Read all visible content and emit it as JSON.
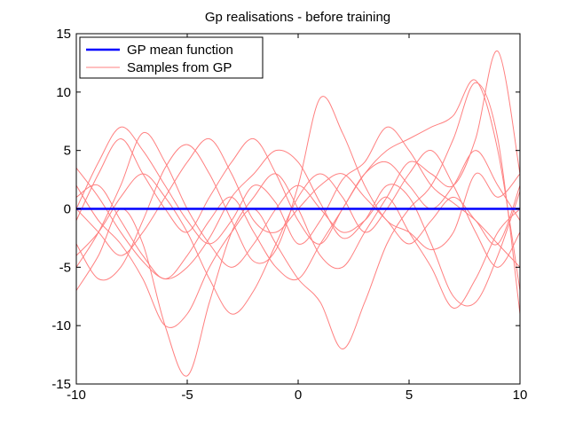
{
  "chart_data": {
    "type": "line",
    "title": "Gp realisations - before training",
    "xlabel": "",
    "ylabel": "",
    "xlim": [
      -10,
      10
    ],
    "ylim": [
      -15,
      15
    ],
    "xticks": [
      -10,
      -5,
      0,
      5,
      10
    ],
    "yticks": [
      -15,
      -10,
      -5,
      0,
      5,
      10,
      15
    ],
    "grid": false,
    "legend_position": "top-left",
    "legend": [
      {
        "label": "GP mean function",
        "color": "#0000ff"
      },
      {
        "label": "Samples from GP",
        "color": "#ff8080"
      }
    ],
    "series": [
      {
        "name": "GP mean function",
        "color": "#0000ff",
        "x": [
          -10,
          -8,
          -6,
          -4,
          -2,
          0,
          2,
          4,
          6,
          8,
          10
        ],
        "y": [
          0,
          0,
          0,
          0,
          0,
          0,
          0,
          0,
          0,
          0,
          0
        ]
      },
      {
        "color": "#ff8080",
        "x": [
          -10,
          -9,
          -8,
          -7,
          -6,
          -5,
          -4,
          -3,
          -2,
          -1,
          0,
          1,
          2,
          3,
          4,
          5,
          6,
          7,
          8,
          9,
          10
        ],
        "y": [
          3.5,
          1,
          -2,
          -4.5,
          -6,
          -5,
          -2.5,
          1,
          3,
          5,
          4,
          0.5,
          -2.5,
          -1,
          2,
          1,
          -3,
          -7.5,
          -8,
          -4,
          1.5
        ]
      },
      {
        "color": "#ff8080",
        "x": [
          -10,
          -9,
          -8,
          -7,
          -6,
          -5,
          -4,
          -3,
          -2,
          -1,
          0,
          1,
          2,
          3,
          4,
          5,
          6,
          7,
          8,
          9,
          10
        ],
        "y": [
          -3,
          -6,
          -5,
          -1,
          3.5,
          5.5,
          3,
          -1,
          -4.5,
          -3.5,
          2,
          9.5,
          6.5,
          2,
          -1,
          -2,
          -3.5,
          -2,
          3,
          1,
          3
        ]
      },
      {
        "color": "#ff8080",
        "x": [
          -10,
          -9,
          -8,
          -7,
          -6,
          -5,
          -4,
          -3,
          -2,
          -1,
          0,
          1,
          2,
          3,
          4,
          5,
          6,
          7,
          8,
          9,
          10
        ],
        "y": [
          0,
          4,
          7,
          5,
          2,
          -1,
          -3,
          -1,
          2,
          0.5,
          -3,
          -1,
          2.5,
          4,
          7,
          5,
          2,
          0.5,
          -1,
          -3,
          -5
        ]
      },
      {
        "color": "#ff8080",
        "x": [
          -10,
          -9,
          -8,
          -7,
          -6,
          -5,
          -4,
          -3,
          -2,
          -1,
          0,
          1,
          2,
          3,
          4,
          5,
          6,
          7,
          8,
          9,
          10
        ],
        "y": [
          1,
          2,
          -1,
          -4,
          -6,
          -4,
          -1,
          1,
          -2,
          -5,
          -6,
          -3,
          0,
          3,
          4,
          2,
          0,
          2,
          5,
          2,
          -1
        ]
      },
      {
        "color": "#ff8080",
        "x": [
          -10,
          -9,
          -8,
          -7,
          -6,
          -5,
          -4,
          -3,
          -2,
          -1,
          0,
          1,
          2,
          3,
          4,
          5,
          6,
          7,
          8,
          9,
          10
        ],
        "y": [
          -5,
          -2,
          2,
          6.5,
          4,
          0,
          -3,
          -5,
          -3,
          0,
          2,
          0,
          -2,
          -1,
          1,
          -2,
          -5,
          -8.5,
          -6,
          -2,
          0
        ]
      },
      {
        "color": "#ff8080",
        "x": [
          -10,
          -9,
          -8,
          -7,
          -6,
          -5,
          -4,
          -3,
          -2,
          -1,
          0,
          1,
          2,
          3,
          4,
          5,
          6,
          7,
          8,
          9,
          10
        ],
        "y": [
          -7,
          -4,
          0,
          -3,
          -10,
          -14.3,
          -8,
          -2,
          1,
          3,
          0,
          -4,
          -5,
          -2,
          1,
          4,
          3,
          2,
          6,
          13.5,
          3
        ]
      },
      {
        "color": "#ff8080",
        "x": [
          -10,
          -9,
          -8,
          -7,
          -6,
          -5,
          -4,
          -3,
          -2,
          -1,
          0,
          1,
          2,
          3,
          4,
          5,
          6,
          7,
          8,
          9,
          10
        ],
        "y": [
          2,
          -1,
          -3,
          -6,
          -10,
          -9,
          -5,
          -2,
          0,
          -3,
          -6,
          -8,
          -12,
          -8,
          -3,
          0,
          2,
          6,
          10.8,
          6,
          -9
        ]
      },
      {
        "color": "#ff8080",
        "x": [
          -10,
          -9,
          -8,
          -7,
          -6,
          -5,
          -4,
          -3,
          -2,
          -1,
          0,
          1,
          2,
          3,
          4,
          5,
          6,
          7,
          8,
          9,
          10
        ],
        "y": [
          -1,
          3,
          6,
          3,
          0,
          -2,
          1,
          4,
          6,
          3,
          -1,
          -3,
          0,
          3,
          5,
          6,
          7,
          8,
          11,
          5,
          -7
        ]
      },
      {
        "color": "#ff8080",
        "x": [
          -10,
          -9,
          -8,
          -7,
          -6,
          -5,
          -4,
          -3,
          -2,
          -1,
          0,
          1,
          2,
          3,
          4,
          5,
          6,
          7,
          8,
          9,
          10
        ],
        "y": [
          -4,
          -2,
          1,
          3,
          1,
          -2,
          -6,
          -9,
          -7,
          -3,
          1,
          3,
          1,
          -2,
          0,
          3,
          5,
          2,
          -2,
          -5,
          -2
        ]
      },
      {
        "color": "#ff8080",
        "x": [
          -10,
          -9,
          -8,
          -7,
          -6,
          -5,
          -4,
          -3,
          -2,
          -1,
          0,
          1,
          2,
          3,
          4,
          5,
          6,
          7,
          8,
          9,
          10
        ],
        "y": [
          0,
          -2,
          -4,
          -2,
          1,
          4,
          6,
          3,
          -1,
          -2,
          0,
          2,
          3,
          1,
          -1,
          -3,
          -1,
          1,
          -1,
          -3,
          2
        ]
      }
    ]
  }
}
